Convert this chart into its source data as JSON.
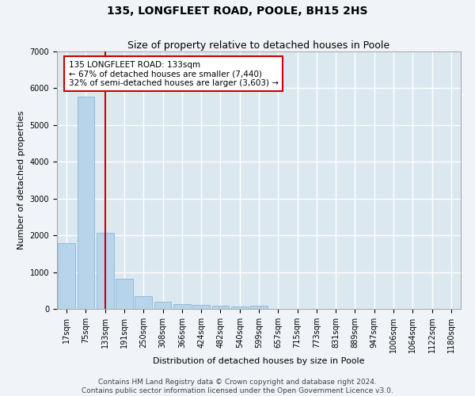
{
  "title": "135, LONGFLEET ROAD, POOLE, BH15 2HS",
  "subtitle": "Size of property relative to detached houses in Poole",
  "xlabel": "Distribution of detached houses by size in Poole",
  "ylabel": "Number of detached properties",
  "categories": [
    "17sqm",
    "75sqm",
    "133sqm",
    "191sqm",
    "250sqm",
    "308sqm",
    "366sqm",
    "424sqm",
    "482sqm",
    "540sqm",
    "599sqm",
    "657sqm",
    "715sqm",
    "773sqm",
    "831sqm",
    "889sqm",
    "947sqm",
    "1006sqm",
    "1064sqm",
    "1122sqm",
    "1180sqm"
  ],
  "values": [
    1780,
    5780,
    2060,
    820,
    345,
    190,
    120,
    100,
    85,
    75,
    90,
    0,
    0,
    0,
    0,
    0,
    0,
    0,
    0,
    0,
    0
  ],
  "bar_color": "#b8d4ea",
  "bar_edge_color": "#7aafd4",
  "highlight_index": 2,
  "highlight_line_color": "#cc0000",
  "annotation_text": "135 LONGFLEET ROAD: 133sqm\n← 67% of detached houses are smaller (7,440)\n32% of semi-detached houses are larger (3,603) →",
  "annotation_box_color": "#ffffff",
  "annotation_box_edge_color": "#cc0000",
  "ylim": [
    0,
    7000
  ],
  "yticks": [
    0,
    1000,
    2000,
    3000,
    4000,
    5000,
    6000,
    7000
  ],
  "background_color": "#dce8f0",
  "fig_background_color": "#f0f4f8",
  "grid_color": "#ffffff",
  "footer_line1": "Contains HM Land Registry data © Crown copyright and database right 2024.",
  "footer_line2": "Contains public sector information licensed under the Open Government Licence v3.0.",
  "title_fontsize": 10,
  "subtitle_fontsize": 9,
  "axis_label_fontsize": 8,
  "tick_fontsize": 7,
  "footer_fontsize": 6.5,
  "annotation_fontsize": 7.5
}
